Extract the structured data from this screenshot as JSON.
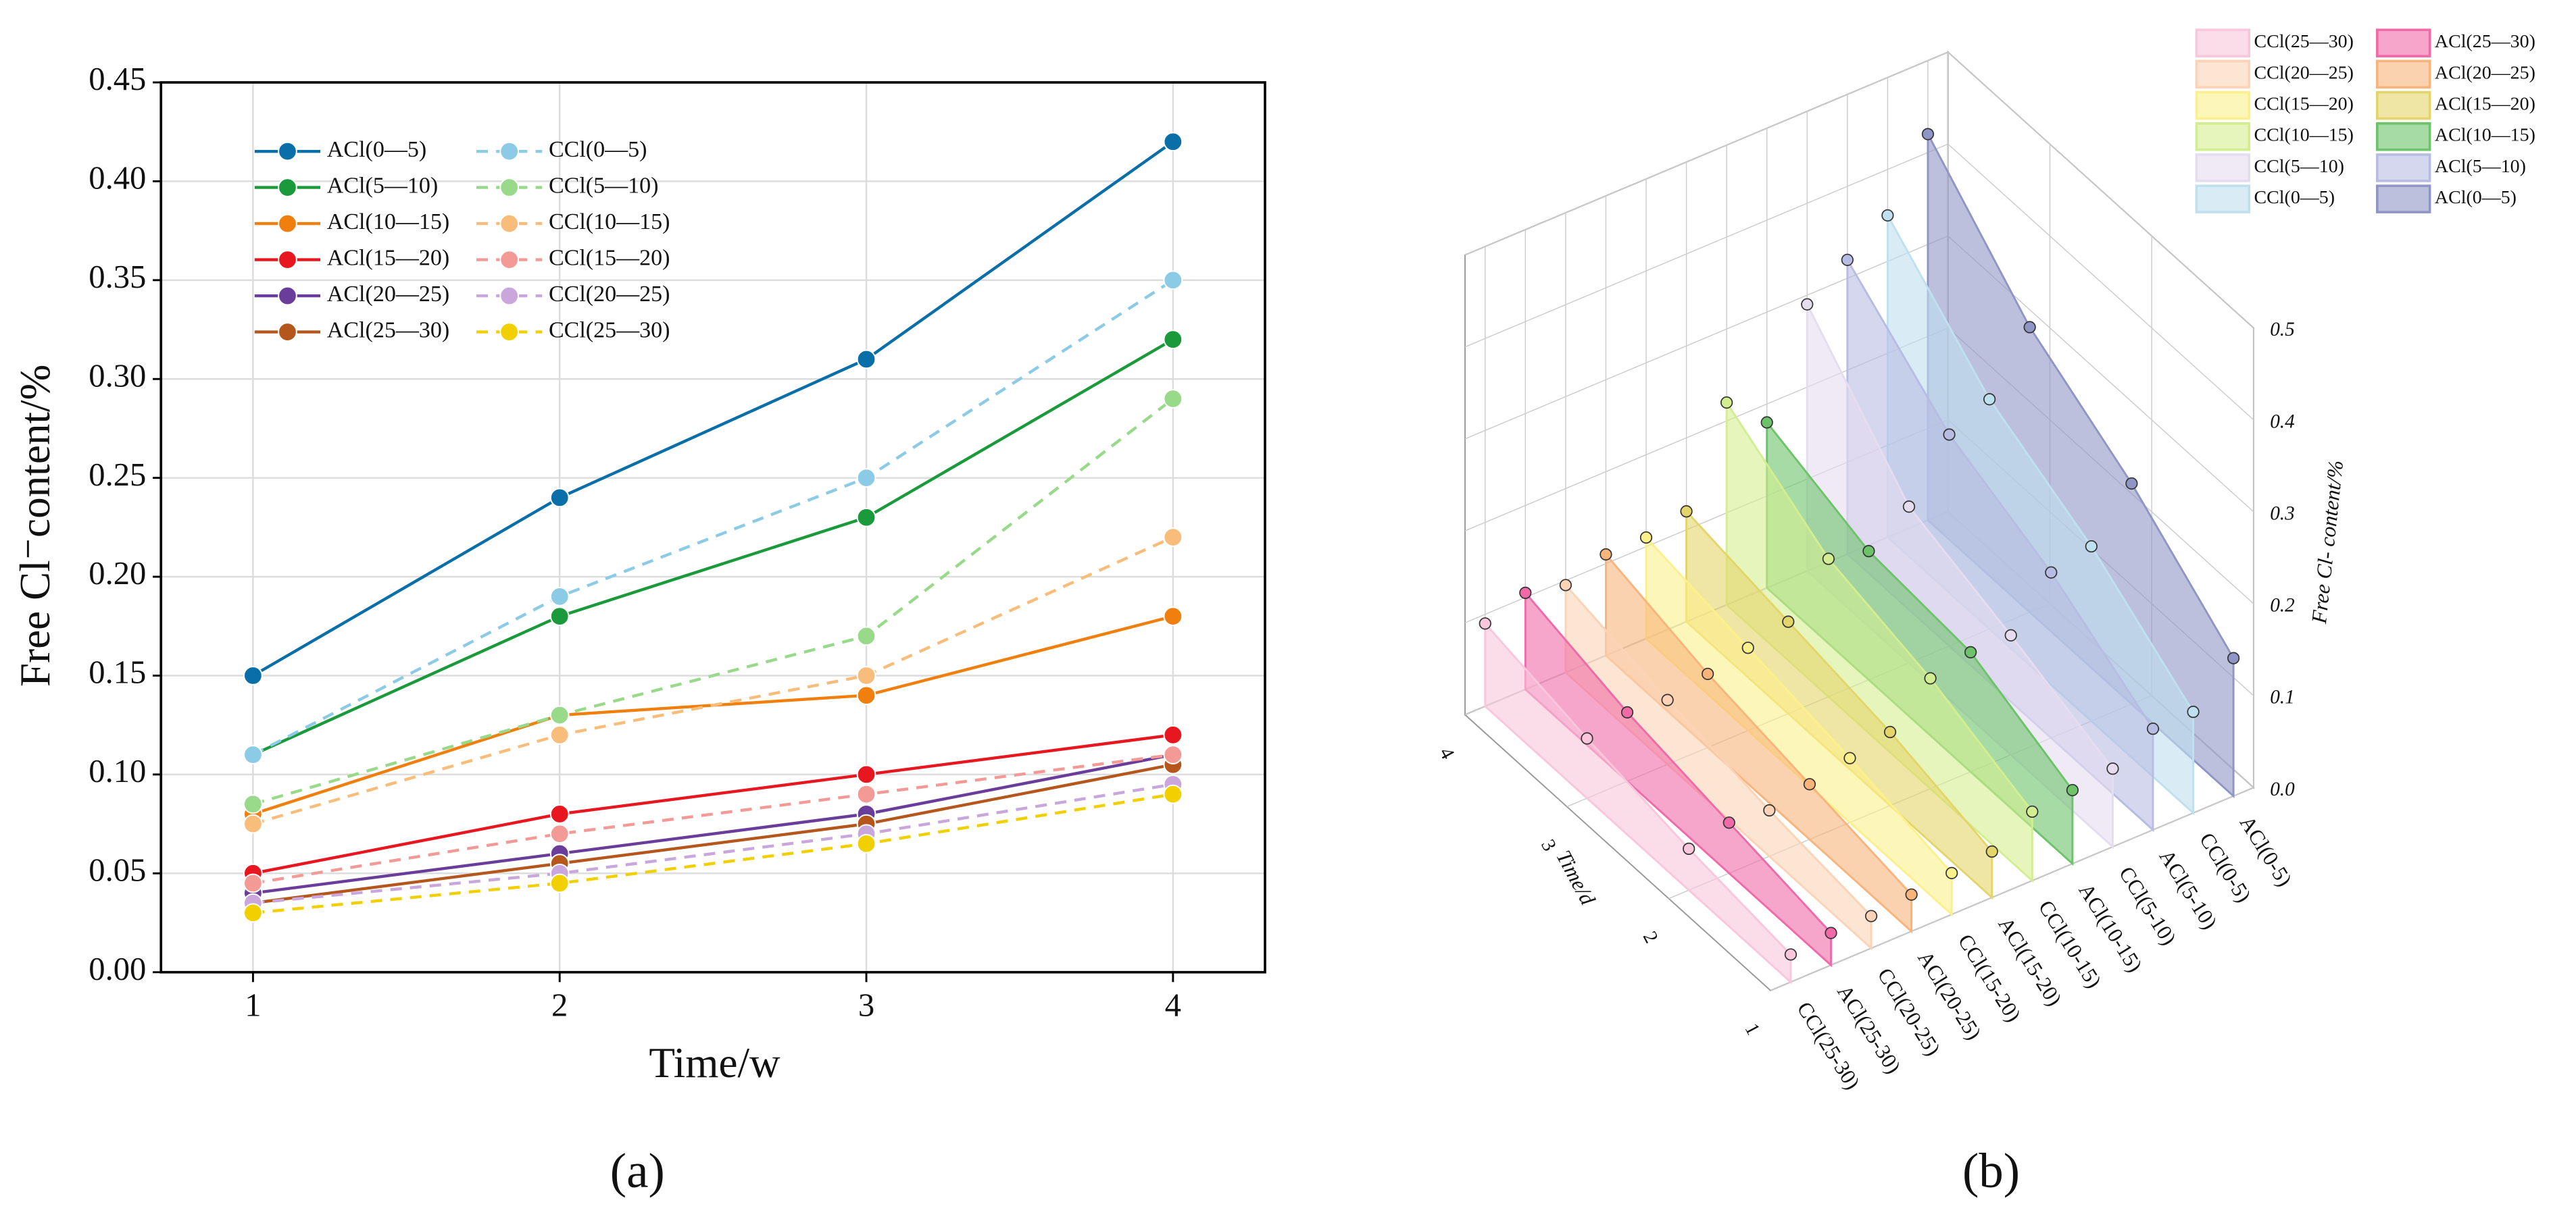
{
  "chart_data": [
    {
      "type": "line",
      "x": [
        1,
        2,
        3,
        4
      ],
      "xlabel": "Time/w",
      "ylabel": "Free Cl⁻content/%",
      "panel_label": "(a)",
      "xlim": [
        0.7,
        4.3
      ],
      "xticks": [
        1,
        2,
        3,
        4
      ],
      "ylim": [
        0,
        0.45
      ],
      "yticks": [
        {
          "value": 0,
          "label": "0.00"
        },
        {
          "value": 0.05,
          "label": "0.05"
        },
        {
          "value": 0.1,
          "label": "0.10"
        },
        {
          "value": 0.15,
          "label": "0.15"
        },
        {
          "value": 0.2,
          "label": "0.20"
        },
        {
          "value": 0.25,
          "label": "0.25"
        },
        {
          "value": 0.3,
          "label": "0.30"
        },
        {
          "value": 0.35,
          "label": "0.35"
        },
        {
          "value": 0.4,
          "label": "0.40"
        },
        {
          "value": 0.45,
          "label": "0.45"
        }
      ],
      "grid": true,
      "legend": "upper left",
      "series": [
        {
          "name": "ACl(0—5)",
          "color": "#0a6fa8",
          "line_style": "solid",
          "values": [
            0.15,
            0.24,
            0.31,
            0.42
          ]
        },
        {
          "name": "ACl(5—10)",
          "color": "#1a9a3a",
          "line_style": "solid",
          "values": [
            0.11,
            0.18,
            0.23,
            0.32
          ]
        },
        {
          "name": "ACl(10—15)",
          "color": "#f07f0e",
          "line_style": "solid",
          "values": [
            0.08,
            0.13,
            0.14,
            0.18
          ]
        },
        {
          "name": "ACl(15—20)",
          "color": "#e8161e",
          "line_style": "solid",
          "values": [
            0.05,
            0.08,
            0.1,
            0.12
          ]
        },
        {
          "name": "ACl(20—25)",
          "color": "#6a3d9a",
          "line_style": "solid",
          "values": [
            0.04,
            0.06,
            0.08,
            0.11
          ]
        },
        {
          "name": "ACl(25—30)",
          "color": "#b5561c",
          "line_style": "solid",
          "values": [
            0.035,
            0.055,
            0.075,
            0.105
          ]
        },
        {
          "name": "CCl(0—5)",
          "color": "#8ccbe6",
          "line_style": "dashed",
          "values": [
            0.11,
            0.19,
            0.25,
            0.35
          ]
        },
        {
          "name": "CCl(5—10)",
          "color": "#98d98a",
          "line_style": "dashed",
          "values": [
            0.085,
            0.13,
            0.17,
            0.29
          ]
        },
        {
          "name": "CCl(10—15)",
          "color": "#f8bd7a",
          "line_style": "dashed",
          "values": [
            0.075,
            0.12,
            0.15,
            0.22
          ]
        },
        {
          "name": "CCl(15—20)",
          "color": "#f49a96",
          "line_style": "dashed",
          "values": [
            0.045,
            0.07,
            0.09,
            0.11
          ]
        },
        {
          "name": "CCl(20—25)",
          "color": "#c9a6dc",
          "line_style": "dashed",
          "values": [
            0.035,
            0.05,
            0.07,
            0.095
          ]
        },
        {
          "name": "CCl(25—30)",
          "color": "#f2d000",
          "line_style": "dashed",
          "values": [
            0.03,
            0.045,
            0.065,
            0.09
          ]
        }
      ]
    },
    {
      "type": "area3d",
      "x": [
        1,
        2,
        3,
        4
      ],
      "xlabel": "Time/d",
      "zlabel": "Free Cl- content/%",
      "panel_label": "(b)",
      "xticks": [
        1,
        2,
        3,
        4
      ],
      "zlim": [
        0,
        0.5
      ],
      "zticks": [
        {
          "value": 0,
          "label": "0.0"
        },
        0.1,
        0.2,
        0.3,
        0.4,
        0.5
      ],
      "legend": "upper right",
      "categories": [
        "CCl(25-30)",
        "ACl(25-30)",
        "CCl(20-25)",
        "ACl(20-25)",
        "CCl(15-20)",
        "ACl(15-20)",
        "CCl(10-15)",
        "ACl(10-15)",
        "CCl(5-10)",
        "ACl(5-10)",
        "CCl(0-5)",
        "ACl(0-5)"
      ],
      "series": [
        {
          "name": "CCl(25—30)",
          "color": "#f9c6dc",
          "values": [
            0.03,
            0.045,
            0.065,
            0.09
          ]
        },
        {
          "name": "ACl(25—30)",
          "color": "#f06aa8",
          "values": [
            0.035,
            0.055,
            0.075,
            0.105
          ]
        },
        {
          "name": "CCl(20—25)",
          "color": "#fcd3b6",
          "values": [
            0.035,
            0.05,
            0.07,
            0.095
          ]
        },
        {
          "name": "ACl(20—25)",
          "color": "#f8b47a",
          "values": [
            0.04,
            0.06,
            0.08,
            0.11
          ]
        },
        {
          "name": "CCl(15—20)",
          "color": "#fbf08a",
          "values": [
            0.045,
            0.07,
            0.09,
            0.11
          ]
        },
        {
          "name": "ACl(15—20)",
          "color": "#e4d56a",
          "values": [
            0.05,
            0.08,
            0.1,
            0.12
          ]
        },
        {
          "name": "CCl(10—15)",
          "color": "#d3ee90",
          "values": [
            0.075,
            0.12,
            0.15,
            0.22
          ]
        },
        {
          "name": "ACl(10—15)",
          "color": "#6cc36a",
          "values": [
            0.08,
            0.13,
            0.14,
            0.18
          ]
        },
        {
          "name": "CCl(5—10)",
          "color": "#e6dcf0",
          "values": [
            0.085,
            0.13,
            0.17,
            0.29
          ]
        },
        {
          "name": "ACl(5—10)",
          "color": "#b7bde2",
          "values": [
            0.11,
            0.18,
            0.23,
            0.32
          ]
        },
        {
          "name": "CCl(0—5)",
          "color": "#bfe0ee",
          "values": [
            0.11,
            0.19,
            0.25,
            0.35
          ]
        },
        {
          "name": "ACl(0—5)",
          "color": "#8f96c6",
          "values": [
            0.15,
            0.24,
            0.31,
            0.42
          ]
        }
      ]
    }
  ]
}
